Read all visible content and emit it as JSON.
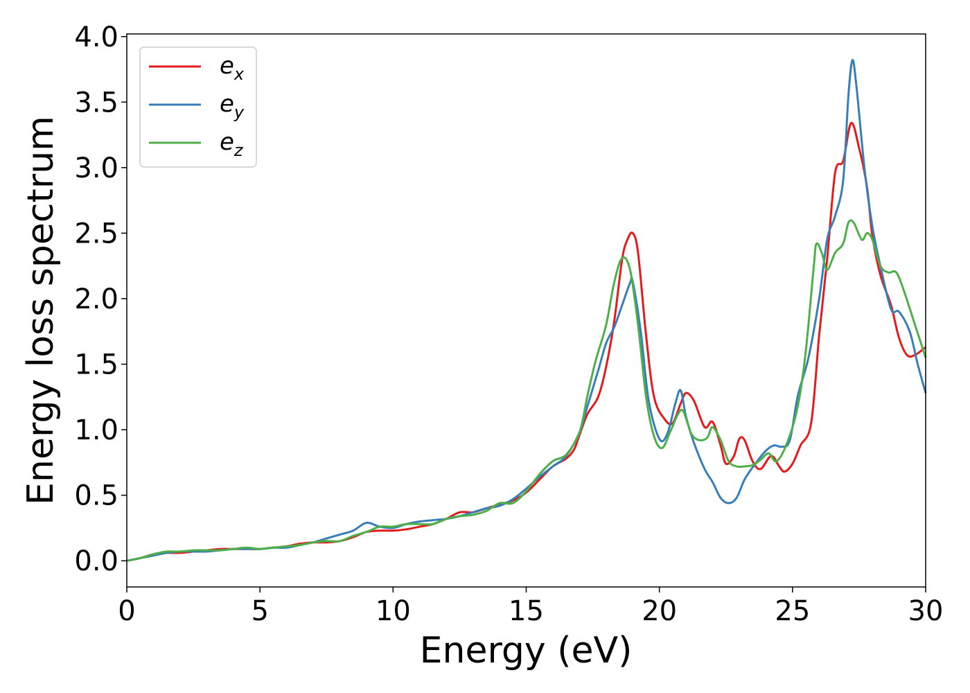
{
  "chart_data": {
    "type": "line",
    "xlabel": "Energy (eV)",
    "ylabel": "Energy loss spectrum",
    "xlim": [
      0,
      30
    ],
    "ylim": [
      -0.2,
      4.02
    ],
    "xticks": [
      "0",
      "5",
      "10",
      "15",
      "20",
      "25",
      "30"
    ],
    "yticks": [
      "0.0",
      "0.5",
      "1.0",
      "1.5",
      "2.0",
      "2.5",
      "3.0",
      "3.5",
      "4.0"
    ],
    "grid": false,
    "legend_position": "top-left",
    "series": [
      {
        "name": "e",
        "subscript": "x",
        "color": "#e41a1c",
        "points": [
          [
            0,
            0
          ],
          [
            0.5,
            0.02
          ],
          [
            1,
            0.05
          ],
          [
            1.5,
            0.06
          ],
          [
            2,
            0.06
          ],
          [
            2.5,
            0.07
          ],
          [
            3,
            0.08
          ],
          [
            3.5,
            0.09
          ],
          [
            4,
            0.09
          ],
          [
            4.5,
            0.09
          ],
          [
            5,
            0.09
          ],
          [
            5.5,
            0.1
          ],
          [
            6,
            0.11
          ],
          [
            6.5,
            0.13
          ],
          [
            7,
            0.14
          ],
          [
            7.5,
            0.14
          ],
          [
            8,
            0.15
          ],
          [
            8.5,
            0.18
          ],
          [
            9,
            0.22
          ],
          [
            9.5,
            0.23
          ],
          [
            10,
            0.23
          ],
          [
            10.5,
            0.24
          ],
          [
            11,
            0.26
          ],
          [
            11.5,
            0.28
          ],
          [
            12,
            0.32
          ],
          [
            12.5,
            0.37
          ],
          [
            13,
            0.37
          ],
          [
            13.5,
            0.4
          ],
          [
            14,
            0.43
          ],
          [
            14.5,
            0.46
          ],
          [
            15,
            0.52
          ],
          [
            15.5,
            0.62
          ],
          [
            16,
            0.72
          ],
          [
            16.5,
            0.78
          ],
          [
            16.8,
            0.85
          ],
          [
            17,
            0.96
          ],
          [
            17.3,
            1.12
          ],
          [
            17.7,
            1.25
          ],
          [
            18,
            1.48
          ],
          [
            18.3,
            1.82
          ],
          [
            18.6,
            2.3
          ],
          [
            18.8,
            2.45
          ],
          [
            19,
            2.5
          ],
          [
            19.2,
            2.35
          ],
          [
            19.5,
            1.72
          ],
          [
            19.8,
            1.25
          ],
          [
            20.2,
            1.08
          ],
          [
            20.5,
            1.05
          ],
          [
            20.8,
            1.2
          ],
          [
            21,
            1.28
          ],
          [
            21.3,
            1.22
          ],
          [
            21.7,
            1.02
          ],
          [
            22,
            1.06
          ],
          [
            22.3,
            0.88
          ],
          [
            22.5,
            0.74
          ],
          [
            22.8,
            0.8
          ],
          [
            23,
            0.93
          ],
          [
            23.2,
            0.92
          ],
          [
            23.5,
            0.76
          ],
          [
            23.8,
            0.7
          ],
          [
            24.2,
            0.8
          ],
          [
            24.5,
            0.72
          ],
          [
            24.7,
            0.68
          ],
          [
            25,
            0.74
          ],
          [
            25.3,
            0.88
          ],
          [
            25.7,
            1.05
          ],
          [
            26,
            1.72
          ],
          [
            26.3,
            2.3
          ],
          [
            26.6,
            2.96
          ],
          [
            26.9,
            3.05
          ],
          [
            27.2,
            3.34
          ],
          [
            27.5,
            3.15
          ],
          [
            27.8,
            2.85
          ],
          [
            28,
            2.48
          ],
          [
            28.3,
            2.18
          ],
          [
            28.7,
            1.95
          ],
          [
            29,
            1.7
          ],
          [
            29.3,
            1.57
          ],
          [
            29.6,
            1.57
          ],
          [
            30,
            1.63
          ]
        ]
      },
      {
        "name": "e",
        "subscript": "y",
        "color": "#377eb8",
        "points": [
          [
            0,
            0
          ],
          [
            0.5,
            0.02
          ],
          [
            1,
            0.04
          ],
          [
            1.5,
            0.06
          ],
          [
            2,
            0.07
          ],
          [
            2.5,
            0.07
          ],
          [
            3,
            0.07
          ],
          [
            3.5,
            0.08
          ],
          [
            4,
            0.09
          ],
          [
            4.5,
            0.09
          ],
          [
            5,
            0.09
          ],
          [
            5.5,
            0.1
          ],
          [
            6,
            0.1
          ],
          [
            6.5,
            0.12
          ],
          [
            7,
            0.14
          ],
          [
            7.5,
            0.17
          ],
          [
            8,
            0.2
          ],
          [
            8.5,
            0.23
          ],
          [
            9,
            0.29
          ],
          [
            9.5,
            0.26
          ],
          [
            10,
            0.25
          ],
          [
            10.5,
            0.28
          ],
          [
            11,
            0.3
          ],
          [
            11.5,
            0.31
          ],
          [
            12,
            0.32
          ],
          [
            12.5,
            0.34
          ],
          [
            13,
            0.37
          ],
          [
            13.5,
            0.4
          ],
          [
            14,
            0.42
          ],
          [
            14.5,
            0.47
          ],
          [
            15,
            0.55
          ],
          [
            15.5,
            0.64
          ],
          [
            16,
            0.72
          ],
          [
            16.5,
            0.8
          ],
          [
            17,
            0.98
          ],
          [
            17.3,
            1.18
          ],
          [
            17.7,
            1.45
          ],
          [
            18,
            1.66
          ],
          [
            18.3,
            1.78
          ],
          [
            18.6,
            1.95
          ],
          [
            18.9,
            2.12
          ],
          [
            19,
            2.13
          ],
          [
            19.3,
            1.75
          ],
          [
            19.6,
            1.22
          ],
          [
            20,
            0.93
          ],
          [
            20.3,
            0.97
          ],
          [
            20.6,
            1.2
          ],
          [
            20.8,
            1.3
          ],
          [
            21,
            1.1
          ],
          [
            21.3,
            0.9
          ],
          [
            21.7,
            0.7
          ],
          [
            22,
            0.6
          ],
          [
            22.3,
            0.48
          ],
          [
            22.6,
            0.44
          ],
          [
            22.9,
            0.48
          ],
          [
            23.2,
            0.62
          ],
          [
            23.6,
            0.74
          ],
          [
            24,
            0.84
          ],
          [
            24.3,
            0.88
          ],
          [
            24.6,
            0.87
          ],
          [
            24.9,
            0.92
          ],
          [
            25.2,
            1.26
          ],
          [
            25.6,
            1.55
          ],
          [
            26,
            2.0
          ],
          [
            26.3,
            2.45
          ],
          [
            26.6,
            2.63
          ],
          [
            26.9,
            2.9
          ],
          [
            27.1,
            3.55
          ],
          [
            27.25,
            3.82
          ],
          [
            27.4,
            3.62
          ],
          [
            27.7,
            3.0
          ],
          [
            28,
            2.55
          ],
          [
            28.3,
            2.25
          ],
          [
            28.7,
            1.92
          ],
          [
            29,
            1.9
          ],
          [
            29.4,
            1.75
          ],
          [
            29.7,
            1.5
          ],
          [
            30,
            1.28
          ]
        ]
      },
      {
        "name": "e",
        "subscript": "z",
        "color": "#4daf4a",
        "points": [
          [
            0,
            0
          ],
          [
            0.5,
            0.02
          ],
          [
            1,
            0.05
          ],
          [
            1.5,
            0.07
          ],
          [
            2,
            0.07
          ],
          [
            2.5,
            0.08
          ],
          [
            3,
            0.08
          ],
          [
            3.5,
            0.08
          ],
          [
            4,
            0.09
          ],
          [
            4.5,
            0.1
          ],
          [
            5,
            0.09
          ],
          [
            5.5,
            0.1
          ],
          [
            6,
            0.11
          ],
          [
            6.5,
            0.12
          ],
          [
            7,
            0.14
          ],
          [
            7.5,
            0.15
          ],
          [
            8,
            0.15
          ],
          [
            8.5,
            0.19
          ],
          [
            9,
            0.22
          ],
          [
            9.5,
            0.26
          ],
          [
            10,
            0.26
          ],
          [
            10.5,
            0.28
          ],
          [
            11,
            0.28
          ],
          [
            11.5,
            0.28
          ],
          [
            12,
            0.32
          ],
          [
            12.5,
            0.34
          ],
          [
            13,
            0.35
          ],
          [
            13.5,
            0.38
          ],
          [
            14,
            0.44
          ],
          [
            14.5,
            0.44
          ],
          [
            15,
            0.53
          ],
          [
            15.5,
            0.66
          ],
          [
            16,
            0.76
          ],
          [
            16.5,
            0.81
          ],
          [
            17,
            0.98
          ],
          [
            17.3,
            1.26
          ],
          [
            17.6,
            1.52
          ],
          [
            18,
            1.8
          ],
          [
            18.3,
            2.12
          ],
          [
            18.6,
            2.31
          ],
          [
            18.9,
            2.22
          ],
          [
            19.2,
            1.8
          ],
          [
            19.5,
            1.25
          ],
          [
            19.8,
            0.95
          ],
          [
            20.1,
            0.86
          ],
          [
            20.4,
            0.98
          ],
          [
            20.7,
            1.12
          ],
          [
            20.9,
            1.14
          ],
          [
            21.2,
            0.97
          ],
          [
            21.5,
            0.92
          ],
          [
            21.8,
            0.94
          ],
          [
            22,
            1.02
          ],
          [
            22.3,
            0.92
          ],
          [
            22.6,
            0.76
          ],
          [
            22.9,
            0.72
          ],
          [
            23.2,
            0.72
          ],
          [
            23.5,
            0.73
          ],
          [
            23.8,
            0.77
          ],
          [
            24.1,
            0.82
          ],
          [
            24.4,
            0.76
          ],
          [
            24.8,
            0.9
          ],
          [
            25.2,
            1.18
          ],
          [
            25.5,
            1.6
          ],
          [
            25.8,
            2.25
          ],
          [
            25.9,
            2.42
          ],
          [
            26.1,
            2.35
          ],
          [
            26.3,
            2.22
          ],
          [
            26.6,
            2.35
          ],
          [
            26.9,
            2.42
          ],
          [
            27.1,
            2.58
          ],
          [
            27.3,
            2.58
          ],
          [
            27.6,
            2.45
          ],
          [
            27.8,
            2.5
          ],
          [
            28,
            2.45
          ],
          [
            28.3,
            2.25
          ],
          [
            28.6,
            2.2
          ],
          [
            28.9,
            2.2
          ],
          [
            29.2,
            2.05
          ],
          [
            29.6,
            1.8
          ],
          [
            30,
            1.55
          ]
        ]
      }
    ]
  }
}
